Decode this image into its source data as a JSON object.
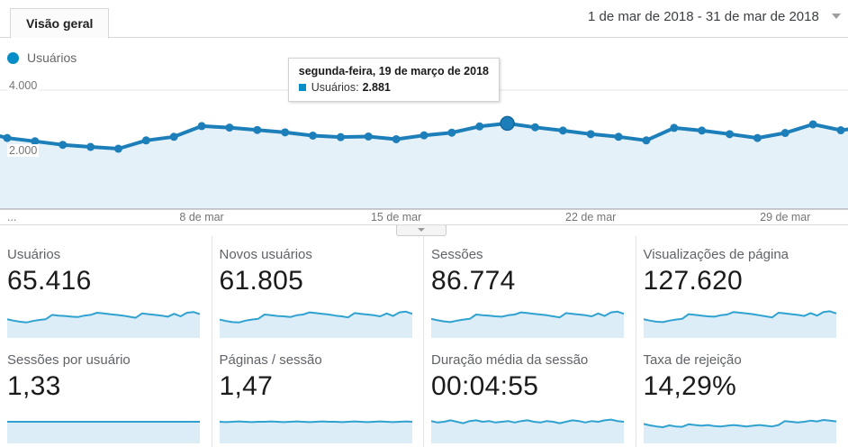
{
  "header": {
    "tab_label": "Visão geral",
    "date_range": "1 de mar de 2018 - 31 de mar de 2018"
  },
  "legend": {
    "label": "Usuários"
  },
  "tooltip": {
    "date": "segunda-feira, 19 de março de 2018",
    "metric_label": "Usuários:",
    "value": "2.881"
  },
  "chart_data": {
    "type": "line",
    "series_name": "Usuários",
    "x_unit": "day of March 2018",
    "x_days": [
      1,
      2,
      3,
      4,
      5,
      6,
      7,
      8,
      9,
      10,
      11,
      12,
      13,
      14,
      15,
      16,
      17,
      18,
      19,
      20,
      21,
      22,
      23,
      24,
      25,
      26,
      27,
      28,
      29,
      30,
      31
    ],
    "values": [
      2390,
      2280,
      2160,
      2090,
      2030,
      2310,
      2430,
      2790,
      2740,
      2660,
      2580,
      2470,
      2420,
      2440,
      2350,
      2480,
      2570,
      2780,
      2881,
      2750,
      2640,
      2520,
      2430,
      2310,
      2730,
      2640,
      2520,
      2390,
      2560,
      2850,
      2650
    ],
    "ylim": [
      0,
      4200
    ],
    "y_ticks": [
      {
        "value": 4000,
        "label": "4.000"
      },
      {
        "value": 2000,
        "label": "2.000"
      }
    ],
    "x_ticks": [
      {
        "day": 8,
        "label": "8 de mar"
      },
      {
        "day": 15,
        "label": "15 de mar"
      },
      {
        "day": 22,
        "label": "22 de mar"
      },
      {
        "day": 29,
        "label": "29 de mar"
      }
    ],
    "x_first_label": "...",
    "grid": true,
    "legend_position": "top-left",
    "highlight": {
      "index": 18,
      "day": 19,
      "value": 2881,
      "tooltip_date": "segunda-feira, 19 de março de 2018"
    }
  },
  "cards": [
    {
      "title": "Usuários",
      "value": "65.416",
      "sparkline": [
        0.42,
        0.38,
        0.35,
        0.33,
        0.37,
        0.4,
        0.42,
        0.54,
        0.52,
        0.51,
        0.49,
        0.48,
        0.52,
        0.54,
        0.6,
        0.58,
        0.56,
        0.54,
        0.52,
        0.49,
        0.46,
        0.58,
        0.56,
        0.54,
        0.52,
        0.49,
        0.57,
        0.5,
        0.6,
        0.62,
        0.56
      ]
    },
    {
      "title": "Novos usuários",
      "value": "61.805",
      "sparkline": [
        0.41,
        0.37,
        0.34,
        0.33,
        0.38,
        0.41,
        0.43,
        0.55,
        0.53,
        0.51,
        0.5,
        0.48,
        0.53,
        0.55,
        0.61,
        0.59,
        0.57,
        0.55,
        0.52,
        0.5,
        0.47,
        0.59,
        0.57,
        0.55,
        0.53,
        0.5,
        0.58,
        0.51,
        0.61,
        0.63,
        0.57
      ]
    },
    {
      "title": "Sessões",
      "value": "86.774",
      "sparkline": [
        0.43,
        0.39,
        0.36,
        0.34,
        0.38,
        0.41,
        0.43,
        0.55,
        0.53,
        0.52,
        0.5,
        0.49,
        0.53,
        0.55,
        0.61,
        0.59,
        0.57,
        0.55,
        0.53,
        0.5,
        0.47,
        0.59,
        0.57,
        0.55,
        0.53,
        0.5,
        0.58,
        0.51,
        0.61,
        0.63,
        0.57
      ]
    },
    {
      "title": "Visualizações de página",
      "value": "127.620",
      "sparkline": [
        0.42,
        0.38,
        0.35,
        0.34,
        0.38,
        0.41,
        0.43,
        0.56,
        0.54,
        0.52,
        0.5,
        0.49,
        0.53,
        0.55,
        0.62,
        0.6,
        0.58,
        0.56,
        0.53,
        0.5,
        0.47,
        0.6,
        0.58,
        0.56,
        0.54,
        0.51,
        0.59,
        0.52,
        0.62,
        0.64,
        0.58
      ]
    },
    {
      "title": "Sessões por usuário",
      "value": "1,33",
      "sparkline": [
        0.5,
        0.5,
        0.5,
        0.5,
        0.5,
        0.5,
        0.5,
        0.5,
        0.5,
        0.5,
        0.5,
        0.5,
        0.5,
        0.5,
        0.5,
        0.5,
        0.5,
        0.5,
        0.5,
        0.5,
        0.5,
        0.5,
        0.5,
        0.5,
        0.5,
        0.5,
        0.5,
        0.5,
        0.5,
        0.5,
        0.5
      ]
    },
    {
      "title": "Páginas / sessão",
      "value": "1,47",
      "sparkline": [
        0.5,
        0.49,
        0.5,
        0.51,
        0.5,
        0.49,
        0.5,
        0.5,
        0.51,
        0.5,
        0.49,
        0.5,
        0.51,
        0.5,
        0.49,
        0.5,
        0.51,
        0.5,
        0.5,
        0.49,
        0.5,
        0.51,
        0.5,
        0.49,
        0.5,
        0.51,
        0.5,
        0.49,
        0.5,
        0.51,
        0.5
      ]
    },
    {
      "title": "Duração média da sessão",
      "value": "00:04:55",
      "sparkline": [
        0.52,
        0.48,
        0.5,
        0.54,
        0.5,
        0.46,
        0.52,
        0.54,
        0.5,
        0.52,
        0.48,
        0.5,
        0.52,
        0.48,
        0.52,
        0.54,
        0.5,
        0.48,
        0.52,
        0.5,
        0.46,
        0.5,
        0.54,
        0.52,
        0.48,
        0.52,
        0.5,
        0.54,
        0.56,
        0.52,
        0.5
      ]
    },
    {
      "title": "Taxa de rejeição",
      "value": "14,29%",
      "sparkline": [
        0.44,
        0.4,
        0.37,
        0.35,
        0.4,
        0.37,
        0.36,
        0.43,
        0.41,
        0.39,
        0.41,
        0.38,
        0.37,
        0.39,
        0.41,
        0.39,
        0.37,
        0.39,
        0.41,
        0.39,
        0.37,
        0.41,
        0.52,
        0.5,
        0.48,
        0.5,
        0.53,
        0.51,
        0.55,
        0.53,
        0.51
      ]
    }
  ],
  "colors": {
    "line": "#1d7fba",
    "line_highlight_ring": "#14679c",
    "area_fill": "#e5f1f8",
    "legend_dot": "#058dc7",
    "tooltip_square": "#058dc7",
    "spark_line": "#30a2d0",
    "spark_fill": "#ddedf7",
    "grid": "#e6e6e6",
    "axis": "#9c9c9c"
  }
}
